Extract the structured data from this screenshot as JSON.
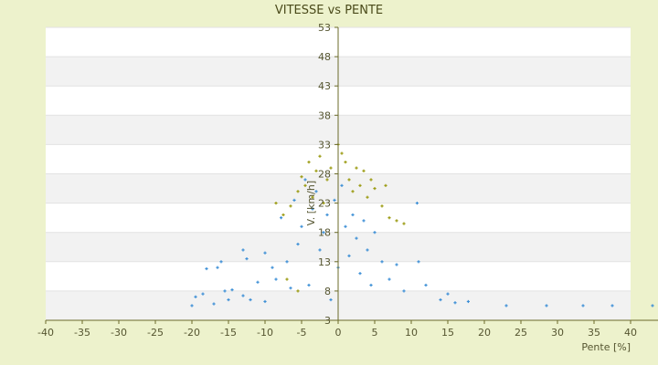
{
  "chart_data": {
    "type": "scatter",
    "title": "VITESSE vs PENTE",
    "xlabel": "Pente [%]",
    "ylabel": "V. [km/h]",
    "xlim": [
      -40,
      43
    ],
    "ylim": [
      3,
      53
    ],
    "x_ticks": [
      -40,
      -35,
      -30,
      -25,
      -20,
      -15,
      -10,
      -5,
      0,
      5,
      10,
      15,
      20,
      25,
      30,
      35,
      40
    ],
    "y_ticks": [
      3,
      8,
      13,
      18,
      23,
      28,
      33,
      38,
      43,
      48,
      53
    ],
    "grid": true,
    "legend": "none",
    "colors": {
      "background": "#edf2cc",
      "band_white": "#ffffff",
      "band_gray": "#f2f2f2",
      "axis": "#6b6b2a",
      "series_blue": "#3d8fd6",
      "series_olive": "#9a9a10"
    },
    "series": [
      {
        "color": "#3d8fd6",
        "points": [
          [
            -20,
            5.5
          ],
          [
            -19.5,
            7
          ],
          [
            -18.5,
            7.5
          ],
          [
            -18,
            11.8
          ],
          [
            -17,
            5.8
          ],
          [
            -16.5,
            12
          ],
          [
            -16,
            13
          ],
          [
            -15.5,
            8
          ],
          [
            -15,
            6.5
          ],
          [
            -14.5,
            8.2
          ],
          [
            -13,
            15
          ],
          [
            -13,
            7.2
          ],
          [
            -12.5,
            13.5
          ],
          [
            -12,
            6.5
          ],
          [
            -11,
            9.5
          ],
          [
            -10,
            14.5
          ],
          [
            -10,
            6.2
          ],
          [
            -9,
            12
          ],
          [
            -8.5,
            10
          ],
          [
            -7.8,
            20.5
          ],
          [
            -7,
            13
          ],
          [
            -6.5,
            8.5
          ],
          [
            -6,
            23.5
          ],
          [
            -5.5,
            16
          ],
          [
            -5,
            19
          ],
          [
            -4.5,
            27
          ],
          [
            -4,
            9
          ],
          [
            -3.5,
            22
          ],
          [
            -3,
            25
          ],
          [
            -2.5,
            15
          ],
          [
            -2,
            18
          ],
          [
            -1.5,
            21
          ],
          [
            -1,
            6.5
          ],
          [
            -0.5,
            23.5
          ],
          [
            0,
            12
          ],
          [
            0.5,
            26
          ],
          [
            1,
            19
          ],
          [
            1.5,
            14
          ],
          [
            2,
            21
          ],
          [
            2.5,
            17
          ],
          [
            3,
            11
          ],
          [
            3.5,
            20
          ],
          [
            4,
            15
          ],
          [
            4.5,
            9
          ],
          [
            5,
            18
          ],
          [
            6,
            13
          ],
          [
            7,
            10
          ],
          [
            8,
            12.5
          ],
          [
            9,
            8
          ],
          [
            10.8,
            23
          ],
          [
            11,
            13
          ],
          [
            12,
            9
          ],
          [
            14,
            6.5
          ],
          [
            15,
            7.5
          ],
          [
            16,
            6
          ],
          [
            17.8,
            6.2
          ],
          [
            23,
            5.5
          ],
          [
            28.5,
            5.5
          ],
          [
            33.5,
            5.5
          ],
          [
            37.5,
            5.5
          ],
          [
            43,
            5.5
          ]
        ]
      },
      {
        "color": "#9a9a10",
        "points": [
          [
            -8.5,
            23
          ],
          [
            -7.5,
            21
          ],
          [
            -6.5,
            22.5
          ],
          [
            -5.5,
            25
          ],
          [
            -5,
            27.5
          ],
          [
            -4.5,
            26
          ],
          [
            -4,
            30
          ],
          [
            -3.5,
            24
          ],
          [
            -3,
            28.5
          ],
          [
            -2.5,
            31
          ],
          [
            -2,
            23
          ],
          [
            -1.5,
            27
          ],
          [
            -1,
            29
          ],
          [
            0,
            33
          ],
          [
            0.5,
            31.5
          ],
          [
            1,
            30
          ],
          [
            1.5,
            27
          ],
          [
            2,
            25
          ],
          [
            2.5,
            29
          ],
          [
            3,
            26
          ],
          [
            3.5,
            28.5
          ],
          [
            4,
            24
          ],
          [
            4.5,
            27
          ],
          [
            5,
            25.5
          ],
          [
            6,
            22.5
          ],
          [
            6.5,
            26
          ],
          [
            7,
            20.5
          ],
          [
            8,
            20
          ],
          [
            9,
            19.5
          ],
          [
            -7,
            10
          ],
          [
            -5.5,
            8
          ]
        ]
      }
    ]
  }
}
